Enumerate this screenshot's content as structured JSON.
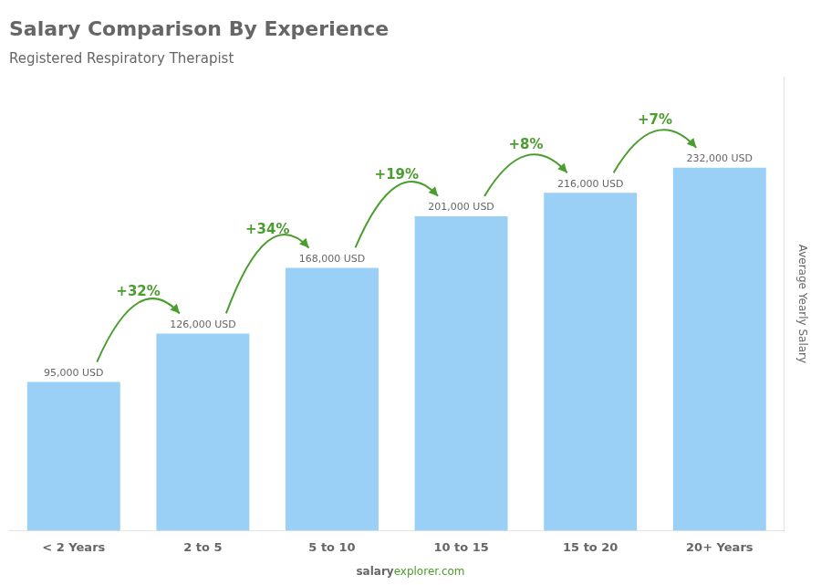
{
  "chart_data": {
    "type": "bar",
    "title": "Salary Comparison By Experience",
    "subtitle": "Registered Respiratory Therapist",
    "ylabel": "Average Yearly Salary",
    "categories": [
      "< 2 Years",
      "2 to 5",
      "5 to 10",
      "10 to 15",
      "15 to 20",
      "20+ Years"
    ],
    "values": [
      95000,
      126000,
      168000,
      201000,
      216000,
      232000
    ],
    "value_labels": [
      "95,000 USD",
      "126,000 USD",
      "168,000 USD",
      "201,000 USD",
      "216,000 USD",
      "232,000 USD"
    ],
    "data_labels": true,
    "annotations": [
      "+32%",
      "+34%",
      "+19%",
      "+8%",
      "+7%"
    ],
    "source": [
      "salary",
      "explorer.com"
    ],
    "ylim": [
      0,
      290000
    ],
    "grid": false,
    "tick_labels": "x"
  }
}
